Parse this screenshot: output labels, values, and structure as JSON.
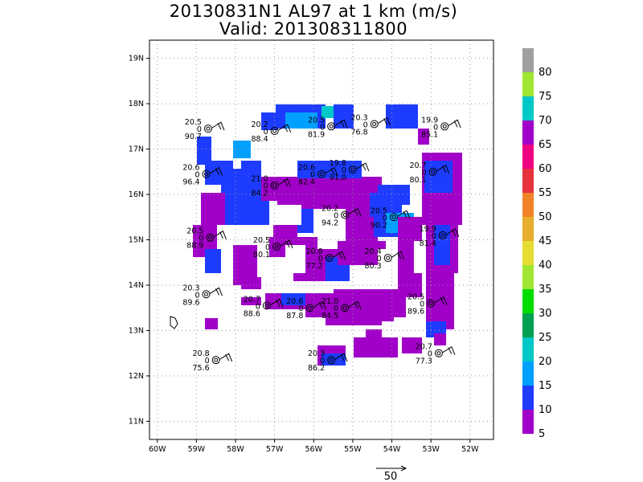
{
  "title": "20130831N1 AL97 at 1 km (m/s)",
  "subtitle": "Valid: 201308311800",
  "colors": {
    "grid": "#999999",
    "frame": "#000000"
  },
  "chart_data": {
    "type": "heatmap",
    "title": "20130831N1 AL97 at 1 km (m/s)",
    "subtitle": "Valid: 201308311800",
    "xlim": [
      -60.2,
      -51.4
    ],
    "ylim": [
      10.6,
      19.4
    ],
    "x_ticks": [
      {
        "value": -60,
        "label": "60W"
      },
      {
        "value": -59,
        "label": "59W"
      },
      {
        "value": -58,
        "label": "58W"
      },
      {
        "value": -57,
        "label": "57W"
      },
      {
        "value": -56,
        "label": "56W"
      },
      {
        "value": -55,
        "label": "55W"
      },
      {
        "value": -54,
        "label": "54W"
      },
      {
        "value": -53,
        "label": "53W"
      },
      {
        "value": -52,
        "label": "52W"
      }
    ],
    "y_ticks": [
      {
        "value": 11,
        "label": "11N"
      },
      {
        "value": 12,
        "label": "12N"
      },
      {
        "value": 13,
        "label": "13N"
      },
      {
        "value": 14,
        "label": "14N"
      },
      {
        "value": 15,
        "label": "15N"
      },
      {
        "value": 16,
        "label": "16N"
      },
      {
        "value": 17,
        "label": "17N"
      },
      {
        "value": 18,
        "label": "18N"
      },
      {
        "value": 19,
        "label": "19N"
      }
    ],
    "grid": "dotted",
    "colorbar": {
      "placement": "right",
      "labels": [
        "80",
        "75",
        "70",
        "65",
        "60",
        "55",
        "50",
        "45",
        "40",
        "35",
        "30",
        "25",
        "20",
        "15",
        "10",
        "5"
      ],
      "colors": [
        "#a0a0a0",
        "#a0e632",
        "#00c8c8",
        "#a000c8",
        "#f00082",
        "#e6323c",
        "#f08228",
        "#e6af2d",
        "#e6dc32",
        "#a0e632",
        "#00dc00",
        "#00a050",
        "#00c8c8",
        "#00a0ff",
        "#1e3cff",
        "#a000c8"
      ]
    },
    "reference_vector": {
      "label": "50"
    },
    "stations": [
      {
        "lon": -58.7,
        "lat": 17.45,
        "temp": "20.5",
        "pressure": "90.7"
      },
      {
        "lon": -57.0,
        "lat": 17.4,
        "temp": "20.2",
        "pressure": "88.4"
      },
      {
        "lon": -55.55,
        "lat": 17.5,
        "temp": "20.5",
        "pressure": "81.9"
      },
      {
        "lon": -54.45,
        "lat": 17.55,
        "temp": "20.3",
        "pressure": "76.8"
      },
      {
        "lon": -52.65,
        "lat": 17.5,
        "temp": "19.9",
        "pressure": "85.1"
      },
      {
        "lon": -58.75,
        "lat": 16.45,
        "temp": "20.6",
        "pressure": "96.4"
      },
      {
        "lon": -57.0,
        "lat": 16.2,
        "temp": "21.0",
        "pressure": "84.2"
      },
      {
        "lon": -55.8,
        "lat": 16.45,
        "temp": "20.6",
        "pressure": "82.4"
      },
      {
        "lon": -55.0,
        "lat": 16.55,
        "temp": "19.8",
        "pressure": "91.0"
      },
      {
        "lon": -52.95,
        "lat": 16.5,
        "temp": "20.7",
        "pressure": "80.1"
      },
      {
        "lon": -55.2,
        "lat": 15.55,
        "temp": "20.2",
        "pressure": "94.2"
      },
      {
        "lon": -53.95,
        "lat": 15.5,
        "temp": "20.5",
        "pressure": "90.2"
      },
      {
        "lon": -58.65,
        "lat": 15.05,
        "temp": "20.5",
        "pressure": "88.9"
      },
      {
        "lon": -52.7,
        "lat": 15.1,
        "temp": "19.9",
        "pressure": "81.4"
      },
      {
        "lon": -56.95,
        "lat": 14.85,
        "temp": "20.5",
        "pressure": "80.1"
      },
      {
        "lon": -55.6,
        "lat": 14.6,
        "temp": "20.8",
        "pressure": "77.2"
      },
      {
        "lon": -54.1,
        "lat": 14.6,
        "temp": "20.4",
        "pressure": "80.3"
      },
      {
        "lon": -58.75,
        "lat": 13.8,
        "temp": "20.3",
        "pressure": "89.6"
      },
      {
        "lon": -57.2,
        "lat": 13.55,
        "temp": "20.7",
        "pressure": "88.6"
      },
      {
        "lon": -56.1,
        "lat": 13.5,
        "temp": "20.6",
        "pressure": "87.8"
      },
      {
        "lon": -55.2,
        "lat": 13.5,
        "temp": "21.0",
        "pressure": "84.5"
      },
      {
        "lon": -53.0,
        "lat": 13.6,
        "temp": "20.5",
        "pressure": "89.6"
      },
      {
        "lon": -58.5,
        "lat": 12.35,
        "temp": "20.8",
        "pressure": "75.6"
      },
      {
        "lon": -55.55,
        "lat": 12.35,
        "temp": "20.3",
        "pressure": "86.2"
      },
      {
        "lon": -52.8,
        "lat": 12.5,
        "temp": "20.7",
        "pressure": "77.3"
      }
    ]
  }
}
